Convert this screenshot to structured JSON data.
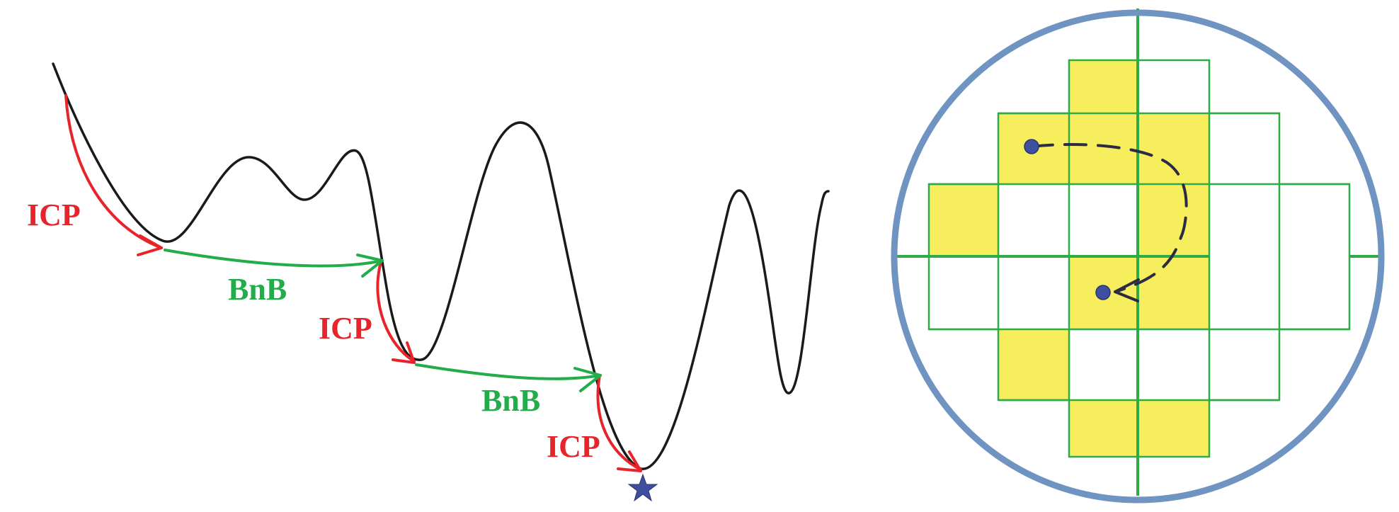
{
  "labels": {
    "icp_1": "ICP",
    "icp_2": "ICP",
    "icp_3": "ICP",
    "bnb_1": "BnB",
    "bnb_2": "BnB"
  },
  "colors": {
    "curve": "#1a1a1a",
    "icp": "#e8242b",
    "bnb": "#22ad4a",
    "grid_line": "#2dab47",
    "cell_fill": "#f7ee5d",
    "circle": "#6f94c2",
    "marker": "#3d4f9e",
    "dashed_path": "#2b2b44"
  },
  "icons": {
    "global_minimum": "star-icon",
    "start_point": "dot-marker",
    "end_point": "dot-marker"
  },
  "grid": {
    "rows": [
      [
        0,
        0,
        1,
        0,
        0,
        0
      ],
      [
        0,
        1,
        1,
        1,
        0,
        0
      ],
      [
        1,
        0,
        0,
        1,
        0,
        0
      ],
      [
        0,
        0,
        1,
        1,
        0,
        0
      ],
      [
        0,
        1,
        0,
        0,
        0,
        0
      ],
      [
        0,
        0,
        1,
        1,
        0,
        0
      ]
    ]
  }
}
